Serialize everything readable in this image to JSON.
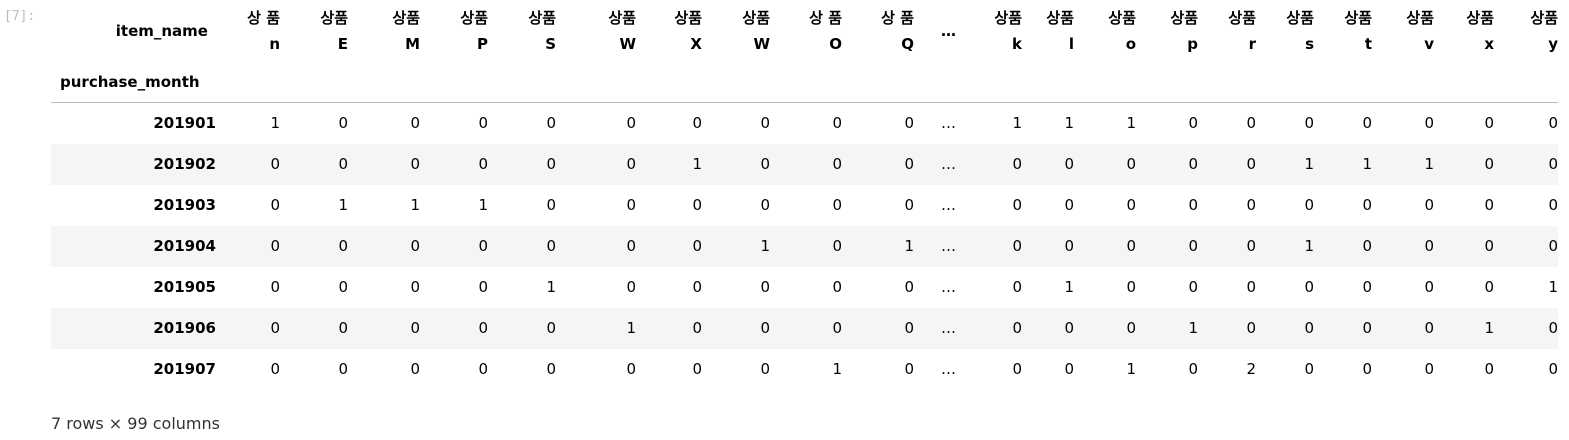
{
  "prompt_label": "[7]:",
  "dataframe": {
    "column_index_name": "item_name",
    "row_index_name": "purchase_month",
    "columns": [
      {
        "top": "상 품",
        "bottom": "n"
      },
      {
        "top": "상품",
        "bottom": "E"
      },
      {
        "top": "상품",
        "bottom": "M"
      },
      {
        "top": "상품",
        "bottom": "P"
      },
      {
        "top": "상품",
        "bottom": "S"
      },
      {
        "top": "상품",
        "bottom": "W"
      },
      {
        "top": "상품",
        "bottom": "X"
      },
      {
        "top": "상품",
        "bottom": "W"
      },
      {
        "top": "상 품",
        "bottom": "O"
      },
      {
        "top": "상 품",
        "bottom": "Q"
      },
      {
        "top": "…",
        "bottom": ""
      },
      {
        "top": "상품",
        "bottom": "k"
      },
      {
        "top": "상품",
        "bottom": "l"
      },
      {
        "top": "상품",
        "bottom": "o"
      },
      {
        "top": "상품",
        "bottom": "p"
      },
      {
        "top": "상품",
        "bottom": "r"
      },
      {
        "top": "상품",
        "bottom": "s"
      },
      {
        "top": "상품",
        "bottom": "t"
      },
      {
        "top": "상품",
        "bottom": "v"
      },
      {
        "top": "상품",
        "bottom": "x"
      },
      {
        "top": "상품",
        "bottom": "y"
      }
    ],
    "rows": [
      {
        "index": "201901",
        "cells": [
          "1",
          "0",
          "0",
          "0",
          "0",
          "0",
          "0",
          "0",
          "0",
          "0",
          "…",
          "1",
          "1",
          "1",
          "0",
          "0",
          "0",
          "0",
          "0",
          "0",
          "0"
        ]
      },
      {
        "index": "201902",
        "cells": [
          "0",
          "0",
          "0",
          "0",
          "0",
          "0",
          "1",
          "0",
          "0",
          "0",
          "…",
          "0",
          "0",
          "0",
          "0",
          "0",
          "1",
          "1",
          "1",
          "0",
          "0"
        ]
      },
      {
        "index": "201903",
        "cells": [
          "0",
          "1",
          "1",
          "1",
          "0",
          "0",
          "0",
          "0",
          "0",
          "0",
          "…",
          "0",
          "0",
          "0",
          "0",
          "0",
          "0",
          "0",
          "0",
          "0",
          "0"
        ]
      },
      {
        "index": "201904",
        "cells": [
          "0",
          "0",
          "0",
          "0",
          "0",
          "0",
          "0",
          "1",
          "0",
          "1",
          "…",
          "0",
          "0",
          "0",
          "0",
          "0",
          "1",
          "0",
          "0",
          "0",
          "0"
        ]
      },
      {
        "index": "201905",
        "cells": [
          "0",
          "0",
          "0",
          "0",
          "1",
          "0",
          "0",
          "0",
          "0",
          "0",
          "…",
          "0",
          "1",
          "0",
          "0",
          "0",
          "0",
          "0",
          "0",
          "0",
          "1"
        ]
      },
      {
        "index": "201906",
        "cells": [
          "0",
          "0",
          "0",
          "0",
          "0",
          "1",
          "0",
          "0",
          "0",
          "0",
          "…",
          "0",
          "0",
          "0",
          "1",
          "0",
          "0",
          "0",
          "0",
          "1",
          "0"
        ]
      },
      {
        "index": "201907",
        "cells": [
          "0",
          "0",
          "0",
          "0",
          "0",
          "0",
          "0",
          "0",
          "1",
          "0",
          "…",
          "0",
          "0",
          "1",
          "0",
          "2",
          "0",
          "0",
          "0",
          "0",
          "0"
        ]
      }
    ],
    "summary": "7 rows × 99 columns"
  }
}
